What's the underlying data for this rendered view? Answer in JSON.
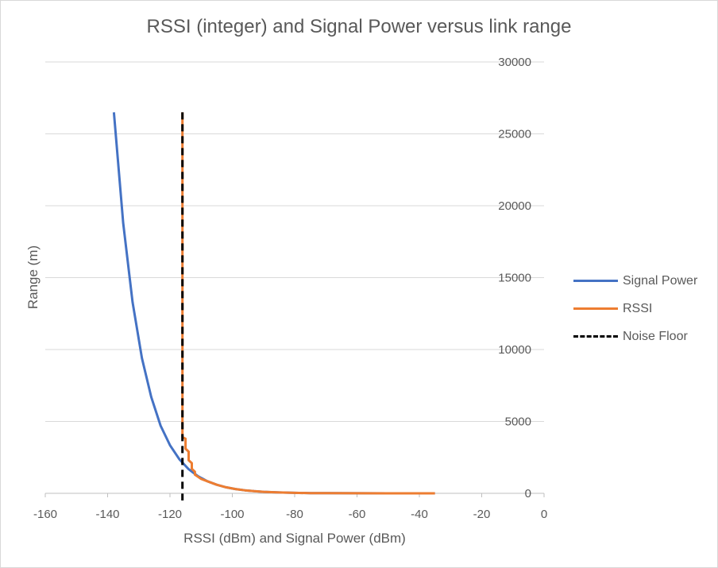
{
  "chart_data": {
    "type": "line",
    "title": "RSSI (integer) and Signal Power versus link range",
    "xlabel": "RSSI (dBm) and Signal Power (dBm)",
    "ylabel": "Range (m)",
    "xlim": [
      -160,
      0
    ],
    "ylim": [
      0,
      30000
    ],
    "x_ticks": [
      "-160",
      "-140",
      "-120",
      "-100",
      "-80",
      "-60",
      "-40",
      "-20",
      "0"
    ],
    "y_ticks": [
      "0",
      "5000",
      "10000",
      "15000",
      "20000",
      "25000",
      "30000"
    ],
    "y_axis_side": "right",
    "grid": "horizontal",
    "legend_position": "right",
    "series": [
      {
        "name": "Signal Power",
        "color": "#4472c4",
        "style": "solid",
        "points": [
          [
            -138,
            26500
          ],
          [
            -135,
            18800
          ],
          [
            -132,
            13300
          ],
          [
            -129,
            9400
          ],
          [
            -126,
            6700
          ],
          [
            -123,
            4700
          ],
          [
            -120,
            3350
          ],
          [
            -117,
            2370
          ],
          [
            -114,
            1680
          ],
          [
            -111,
            1190
          ],
          [
            -108,
            840
          ],
          [
            -105,
            595
          ],
          [
            -102,
            420
          ],
          [
            -99,
            300
          ],
          [
            -96,
            212
          ],
          [
            -93,
            150
          ],
          [
            -90,
            106
          ],
          [
            -85,
            60
          ],
          [
            -80,
            33
          ],
          [
            -75,
            19
          ],
          [
            -70,
            11
          ],
          [
            -60,
            3
          ],
          [
            -50,
            1
          ],
          [
            -40,
            0
          ],
          [
            -35,
            0
          ]
        ]
      },
      {
        "name": "RSSI",
        "color": "#ed7d31",
        "style": "solid",
        "points": [
          [
            -116,
            26500
          ],
          [
            -116,
            3900
          ],
          [
            -115,
            3800
          ],
          [
            -115,
            3100
          ],
          [
            -114,
            2900
          ],
          [
            -114,
            2300
          ],
          [
            -113,
            2100
          ],
          [
            -113,
            1700
          ],
          [
            -112,
            1500
          ],
          [
            -112,
            1300
          ],
          [
            -111,
            1150
          ],
          [
            -110,
            1000
          ],
          [
            -108,
            840
          ],
          [
            -105,
            595
          ],
          [
            -102,
            420
          ],
          [
            -99,
            300
          ],
          [
            -96,
            212
          ],
          [
            -93,
            150
          ],
          [
            -90,
            106
          ],
          [
            -85,
            60
          ],
          [
            -80,
            33
          ],
          [
            -75,
            19
          ],
          [
            -70,
            11
          ],
          [
            -60,
            3
          ],
          [
            -50,
            1
          ],
          [
            -40,
            0
          ],
          [
            -35,
            0
          ]
        ]
      },
      {
        "name": "Noise Floor",
        "color": "#000000",
        "style": "dashed",
        "points": [
          [
            -116,
            26500
          ],
          [
            -116,
            -500
          ]
        ]
      }
    ]
  }
}
